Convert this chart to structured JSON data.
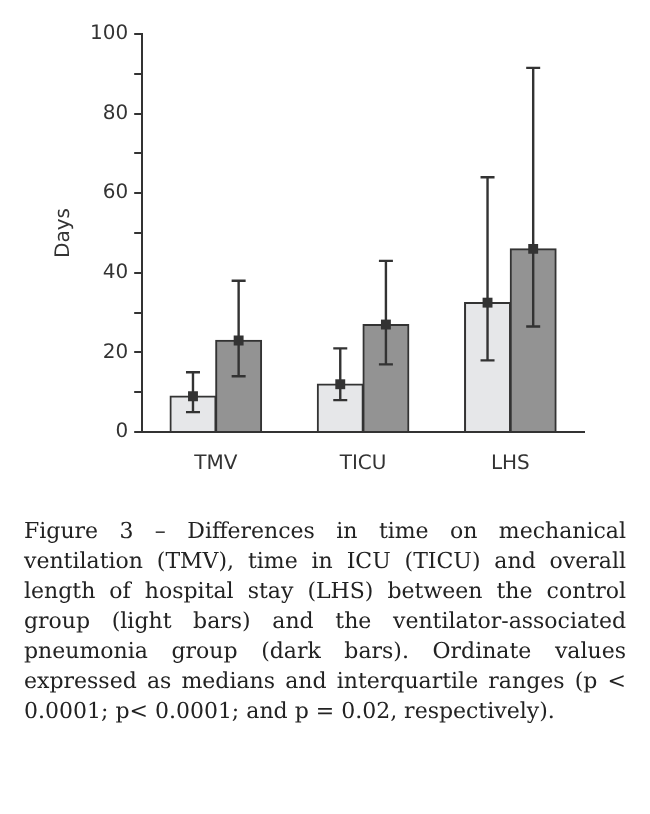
{
  "chart_data": {
    "type": "bar",
    "ylabel": "Days",
    "categories": [
      "TMV",
      "TICU",
      "LHS"
    ],
    "series": [
      {
        "color": "#e6e7e9",
        "values": [
          9,
          12,
          32.5
        ],
        "errors": [
          [
            5,
            15
          ],
          [
            8,
            21
          ],
          [
            18,
            64
          ]
        ]
      },
      {
        "color": "#939393",
        "values": [
          23,
          27,
          46
        ],
        "errors": [
          [
            14,
            38
          ],
          [
            17,
            43
          ],
          [
            26.5,
            91.5
          ]
        ]
      },
      {
        "type": "scatter",
        "color": "#333333",
        "x": [
          "TMV",
          "TICU",
          "LHS"
        ],
        "values": [
          9,
          12,
          32.5
        ]
      },
      {
        "type": "scatter",
        "color": "#333333",
        "x": [
          "TMV",
          "TICU",
          "LHS"
        ],
        "values": [
          23,
          27,
          46
        ]
      }
    ],
    "ylim": [
      0,
      100
    ],
    "yticks": [
      0,
      {
        "value": 10,
        "label": null
      },
      20,
      {
        "value": 30,
        "label": null
      },
      40,
      {
        "value": 50,
        "label": null
      },
      60,
      {
        "value": 70,
        "label": null
      },
      80,
      {
        "value": 90,
        "label": null
      },
      100
    ],
    "grid": false,
    "legend": false,
    "marker": "square",
    "annotations": [
      "Figure 3 – Differences in time on mechanical ventilation (TMV), time in ICU (TICU) and overall length of hospital stay (LHS) between the control group (light bars) and the ventilator-associated pneumonia group (dark bars). Ordinate values expressed as medians and interquartile ranges (p < 0.0001; p< 0.0001; and p = 0.02, respectively)."
    ]
  }
}
